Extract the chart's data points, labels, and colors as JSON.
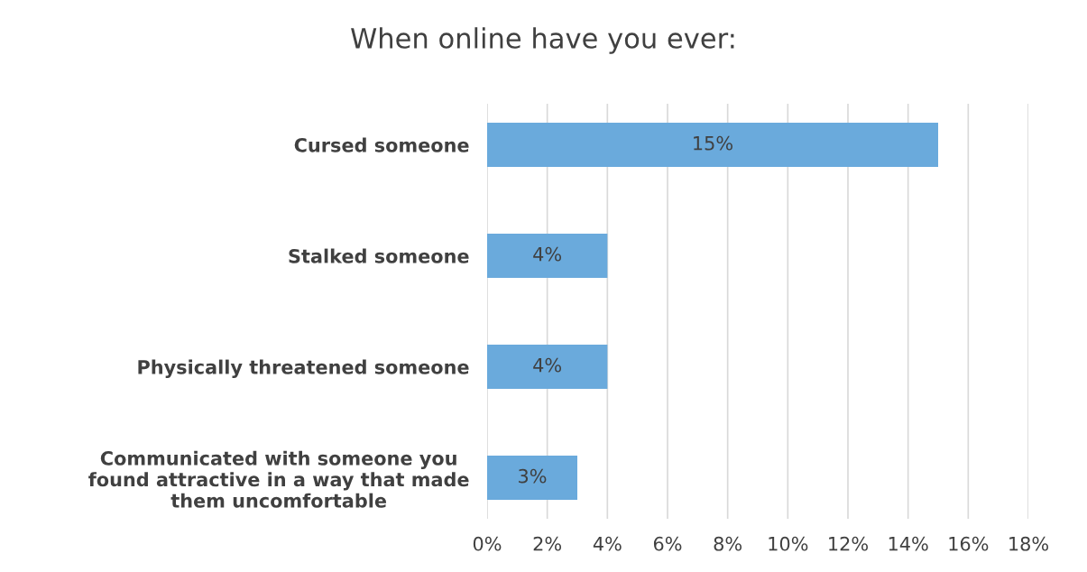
{
  "chart_data": {
    "type": "bar",
    "orientation": "horizontal",
    "title": "When online have you ever:",
    "categories": [
      "Cursed someone",
      "Stalked someone",
      "Physically threatened someone",
      "Communicated with someone you\nfound attractive in a way that made\nthem uncomfortable"
    ],
    "values": [
      15,
      4,
      4,
      3
    ],
    "value_labels": [
      "15%",
      "4%",
      "4%",
      "3%"
    ],
    "color": "#6aaadc",
    "xlim": [
      0,
      18
    ],
    "xticks": [
      {
        "value": 0,
        "label": "0%"
      },
      {
        "value": 2,
        "label": "2%"
      },
      {
        "value": 4,
        "label": "4%"
      },
      {
        "value": 6,
        "label": "6%"
      },
      {
        "value": 8,
        "label": "8%"
      },
      {
        "value": 10,
        "label": "10%"
      },
      {
        "value": 12,
        "label": "12%"
      },
      {
        "value": 14,
        "label": "14%"
      },
      {
        "value": 16,
        "label": "16%"
      },
      {
        "value": 18,
        "label": "18%"
      }
    ],
    "grid": "x"
  }
}
